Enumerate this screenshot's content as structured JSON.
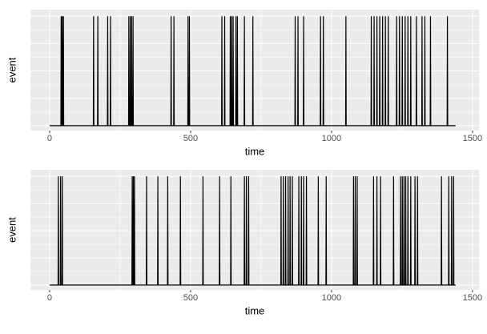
{
  "chart_data": [
    {
      "type": "line",
      "xlabel": "time",
      "ylabel": "event",
      "color": "#000000",
      "grid": true,
      "xlim": [
        -68,
        1523
      ],
      "xticks": [
        0,
        500,
        1000,
        1500
      ],
      "ylim": [
        -0.045,
        1.06
      ],
      "yticks": [
        0,
        0.25,
        0.5,
        0.75,
        1
      ],
      "x": [
        0,
        40,
        41,
        42,
        44,
        45,
        46,
        48,
        49,
        50,
        155,
        156,
        157,
        170,
        171,
        172,
        205,
        206,
        207,
        215,
        216,
        217,
        280,
        281,
        282,
        285,
        286,
        287,
        290,
        291,
        292,
        295,
        296,
        297,
        430,
        431,
        432,
        440,
        441,
        442,
        490,
        491,
        492,
        495,
        496,
        497,
        610,
        611,
        612,
        620,
        621,
        622,
        640,
        641,
        642,
        645,
        646,
        647,
        650,
        651,
        652,
        660,
        661,
        662,
        665,
        666,
        667,
        690,
        691,
        692,
        720,
        721,
        722,
        870,
        871,
        872,
        880,
        881,
        882,
        900,
        901,
        902,
        960,
        961,
        962,
        970,
        971,
        972,
        1050,
        1051,
        1052,
        1140,
        1141,
        1142,
        1150,
        1151,
        1152,
        1160,
        1161,
        1162,
        1170,
        1171,
        1172,
        1180,
        1181,
        1182,
        1190,
        1191,
        1192,
        1200,
        1201,
        1202,
        1230,
        1231,
        1232,
        1240,
        1241,
        1242,
        1250,
        1251,
        1252,
        1260,
        1261,
        1262,
        1270,
        1271,
        1272,
        1280,
        1281,
        1282,
        1300,
        1301,
        1302,
        1320,
        1321,
        1322,
        1330,
        1331,
        1332,
        1350,
        1351,
        1352,
        1410,
        1411,
        1412,
        1440
      ],
      "values": [
        0,
        0,
        1,
        0,
        0,
        1,
        0,
        0,
        1,
        0,
        0,
        1,
        0,
        0,
        1,
        0,
        0,
        1,
        0,
        0,
        1,
        0,
        0,
        1,
        0,
        0,
        1,
        0,
        0,
        1,
        0,
        0,
        1,
        0,
        0,
        1,
        0,
        0,
        1,
        0,
        0,
        1,
        0,
        0,
        1,
        0,
        0,
        1,
        0,
        0,
        1,
        0,
        0,
        1,
        0,
        0,
        1,
        0,
        0,
        1,
        0,
        0,
        1,
        0,
        0,
        1,
        0,
        0,
        1,
        0,
        0,
        1,
        0,
        0,
        1,
        0,
        0,
        1,
        0,
        0,
        1,
        0,
        0,
        1,
        0,
        0,
        1,
        0,
        0,
        1,
        0,
        0,
        1,
        0,
        0,
        1,
        0,
        0,
        1,
        0,
        0,
        1,
        0,
        0,
        1,
        0,
        0,
        1,
        0,
        0,
        1,
        0,
        0,
        1,
        0,
        0,
        1,
        0,
        0,
        1,
        0,
        0,
        1,
        0,
        0,
        1,
        0,
        0,
        1,
        0,
        0,
        1,
        0,
        0,
        1,
        0,
        0,
        1,
        0,
        0,
        1,
        0,
        0,
        1,
        0,
        0
      ]
    },
    {
      "type": "line",
      "xlabel": "time",
      "ylabel": "event",
      "color": "#000000",
      "grid": true,
      "xlim": [
        -68,
        1523
      ],
      "xticks": [
        0,
        500,
        1000,
        1500
      ],
      "ylim": [
        -0.045,
        1.06
      ],
      "yticks": [
        0,
        0.25,
        0.5,
        0.75,
        1
      ],
      "x": [
        0,
        30,
        31,
        32,
        38,
        39,
        40,
        44,
        45,
        46,
        292,
        293,
        294,
        296,
        297,
        298,
        300,
        301,
        302,
        343,
        344,
        345,
        383,
        384,
        385,
        418,
        419,
        420,
        463,
        464,
        465,
        543,
        544,
        545,
        602,
        603,
        604,
        642,
        643,
        644,
        690,
        691,
        692,
        697,
        698,
        699,
        705,
        706,
        707,
        820,
        821,
        822,
        828,
        829,
        830,
        836,
        837,
        838,
        845,
        846,
        847,
        852,
        853,
        854,
        860,
        861,
        862,
        883,
        884,
        885,
        892,
        893,
        894,
        900,
        901,
        902,
        910,
        911,
        912,
        952,
        953,
        954,
        980,
        981,
        982,
        1077,
        1078,
        1079,
        1083,
        1084,
        1085,
        1090,
        1091,
        1092,
        1148,
        1149,
        1150,
        1160,
        1161,
        1162,
        1173,
        1174,
        1175,
        1219,
        1220,
        1221,
        1244,
        1245,
        1246,
        1250,
        1251,
        1252,
        1256,
        1257,
        1258,
        1262,
        1263,
        1264,
        1270,
        1271,
        1272,
        1280,
        1281,
        1282,
        1295,
        1296,
        1297,
        1304,
        1305,
        1306,
        1389,
        1390,
        1391,
        1415,
        1416,
        1417,
        1425,
        1426,
        1427,
        1432,
        1433,
        1434,
        1440
      ],
      "values": [
        0,
        0,
        1,
        0,
        0,
        1,
        0,
        0,
        1,
        0,
        0,
        1,
        0,
        0,
        1,
        0,
        0,
        1,
        0,
        0,
        1,
        0,
        0,
        1,
        0,
        0,
        1,
        0,
        0,
        1,
        0,
        0,
        1,
        0,
        0,
        1,
        0,
        0,
        1,
        0,
        0,
        1,
        0,
        0,
        1,
        0,
        0,
        1,
        0,
        0,
        1,
        0,
        0,
        1,
        0,
        0,
        1,
        0,
        0,
        1,
        0,
        0,
        1,
        0,
        0,
        1,
        0,
        0,
        1,
        0,
        0,
        1,
        0,
        0,
        1,
        0,
        0,
        1,
        0,
        0,
        1,
        0,
        0,
        1,
        0,
        0,
        1,
        0,
        0,
        1,
        0,
        0,
        1,
        0,
        0,
        1,
        0,
        0,
        1,
        0,
        0,
        1,
        0,
        0,
        1,
        0,
        0,
        1,
        0,
        0,
        1,
        0,
        0,
        1,
        0,
        0,
        1,
        0,
        0,
        1,
        0,
        0,
        1,
        0,
        0,
        1,
        0,
        0,
        1,
        0,
        0,
        1,
        0,
        0,
        1,
        0,
        0,
        1,
        0,
        0,
        1,
        0,
        0
      ]
    }
  ]
}
